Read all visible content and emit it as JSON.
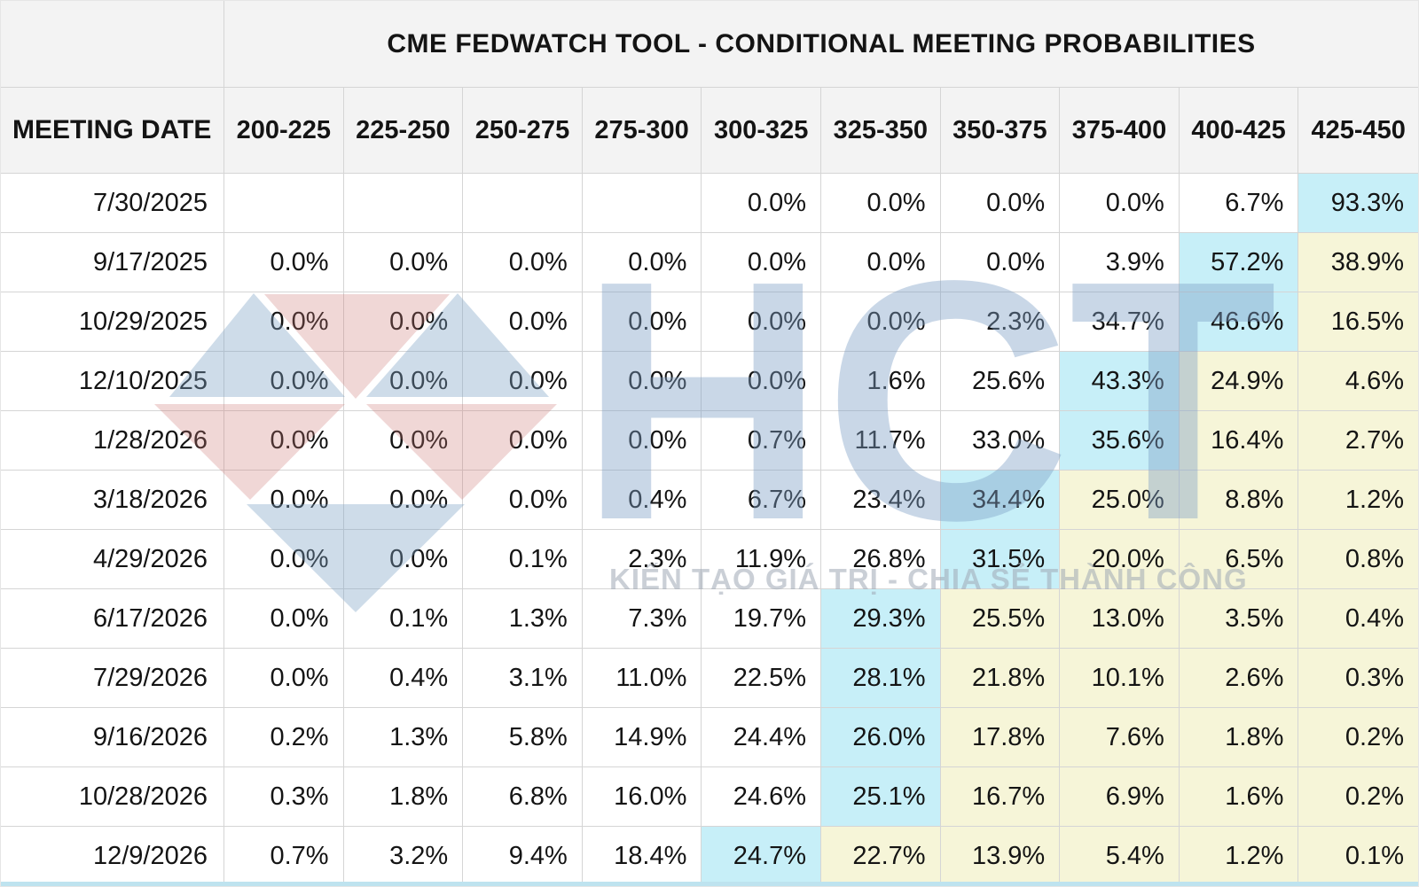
{
  "chart_data": {
    "type": "table",
    "title": "CME FEDWATCH TOOL - CONDITIONAL MEETING PROBABILITIES",
    "columns": [
      "MEETING DATE",
      "200-225",
      "225-250",
      "250-275",
      "275-300",
      "300-325",
      "325-350",
      "350-375",
      "375-400",
      "400-425",
      "425-450"
    ],
    "highlight_rule": "cell at highlight_index (row maximum) is cyan; cells to its right are pale yellow; empty strings are blank cells",
    "rows": [
      {
        "date": "7/30/2025",
        "values": [
          "",
          "",
          "",
          "",
          "0.0%",
          "0.0%",
          "0.0%",
          "0.0%",
          "6.7%",
          "93.3%"
        ],
        "highlight_index": 9
      },
      {
        "date": "9/17/2025",
        "values": [
          "0.0%",
          "0.0%",
          "0.0%",
          "0.0%",
          "0.0%",
          "0.0%",
          "0.0%",
          "3.9%",
          "57.2%",
          "38.9%"
        ],
        "highlight_index": 8
      },
      {
        "date": "10/29/2025",
        "values": [
          "0.0%",
          "0.0%",
          "0.0%",
          "0.0%",
          "0.0%",
          "0.0%",
          "2.3%",
          "34.7%",
          "46.6%",
          "16.5%"
        ],
        "highlight_index": 8
      },
      {
        "date": "12/10/2025",
        "values": [
          "0.0%",
          "0.0%",
          "0.0%",
          "0.0%",
          "0.0%",
          "1.6%",
          "25.6%",
          "43.3%",
          "24.9%",
          "4.6%"
        ],
        "highlight_index": 7
      },
      {
        "date": "1/28/2026",
        "values": [
          "0.0%",
          "0.0%",
          "0.0%",
          "0.0%",
          "0.7%",
          "11.7%",
          "33.0%",
          "35.6%",
          "16.4%",
          "2.7%"
        ],
        "highlight_index": 7
      },
      {
        "date": "3/18/2026",
        "values": [
          "0.0%",
          "0.0%",
          "0.0%",
          "0.4%",
          "6.7%",
          "23.4%",
          "34.4%",
          "25.0%",
          "8.8%",
          "1.2%"
        ],
        "highlight_index": 6
      },
      {
        "date": "4/29/2026",
        "values": [
          "0.0%",
          "0.0%",
          "0.1%",
          "2.3%",
          "11.9%",
          "26.8%",
          "31.5%",
          "20.0%",
          "6.5%",
          "0.8%"
        ],
        "highlight_index": 6
      },
      {
        "date": "6/17/2026",
        "values": [
          "0.0%",
          "0.1%",
          "1.3%",
          "7.3%",
          "19.7%",
          "29.3%",
          "25.5%",
          "13.0%",
          "3.5%",
          "0.4%"
        ],
        "highlight_index": 5
      },
      {
        "date": "7/29/2026",
        "values": [
          "0.0%",
          "0.4%",
          "3.1%",
          "11.0%",
          "22.5%",
          "28.1%",
          "21.8%",
          "10.1%",
          "2.6%",
          "0.3%"
        ],
        "highlight_index": 5
      },
      {
        "date": "9/16/2026",
        "values": [
          "0.2%",
          "1.3%",
          "5.8%",
          "14.9%",
          "24.4%",
          "26.0%",
          "17.8%",
          "7.6%",
          "1.8%",
          "0.2%"
        ],
        "highlight_index": 5
      },
      {
        "date": "10/28/2026",
        "values": [
          "0.3%",
          "1.8%",
          "6.8%",
          "16.0%",
          "24.6%",
          "25.1%",
          "16.7%",
          "6.9%",
          "1.6%",
          "0.2%"
        ],
        "highlight_index": 5
      },
      {
        "date": "12/9/2026",
        "values": [
          "0.7%",
          "3.2%",
          "9.4%",
          "18.4%",
          "24.7%",
          "22.7%",
          "13.9%",
          "5.4%",
          "1.2%",
          "0.1%"
        ],
        "highlight_index": 4
      }
    ]
  },
  "watermark": {
    "logo_text": "HCT",
    "tagline": "KIẾN TẠO GIÁ TRỊ - CHIA SẺ THÀNH CÔNG"
  },
  "colors": {
    "highlight_max": "#c7eff8",
    "highlight_after": "#f6f5d8",
    "header_bg": "#f3f3f3",
    "grid": "#d5d5d5",
    "bottom_strip": "#bee3ef",
    "watermark_blue": "rgba(125,162,198,0.38)",
    "watermark_pink": "rgba(205,122,118,0.30)",
    "watermark_text": "rgba(127,160,198,0.42)",
    "watermark_tagline": "rgba(158,167,180,0.55)"
  }
}
